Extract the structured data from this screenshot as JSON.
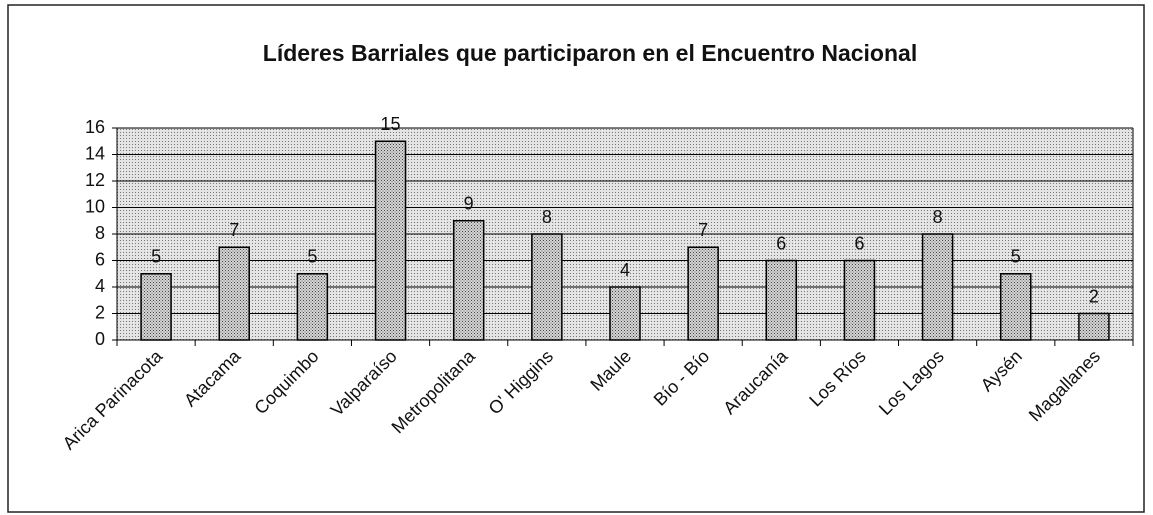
{
  "chart_data": {
    "type": "bar",
    "title": "Líderes Barriales que participaron en el Encuentro Nacional",
    "categories": [
      "Arica Parinacota",
      "Atacama",
      "Coquimbo",
      "Valparaíso",
      "Metropolitana",
      "O' Higgins",
      "Maule",
      "Bío - Bío",
      "Araucanía",
      "Los Ríos",
      "Los Lagos",
      "Aysén",
      "Magallanes"
    ],
    "values": [
      5,
      7,
      5,
      15,
      9,
      8,
      4,
      7,
      6,
      6,
      8,
      5,
      2
    ],
    "color": "#c8c8c8",
    "ylim": [
      0,
      16
    ],
    "yticks": [
      0,
      2,
      4,
      6,
      8,
      10,
      12,
      14,
      16
    ],
    "grid": true
  }
}
